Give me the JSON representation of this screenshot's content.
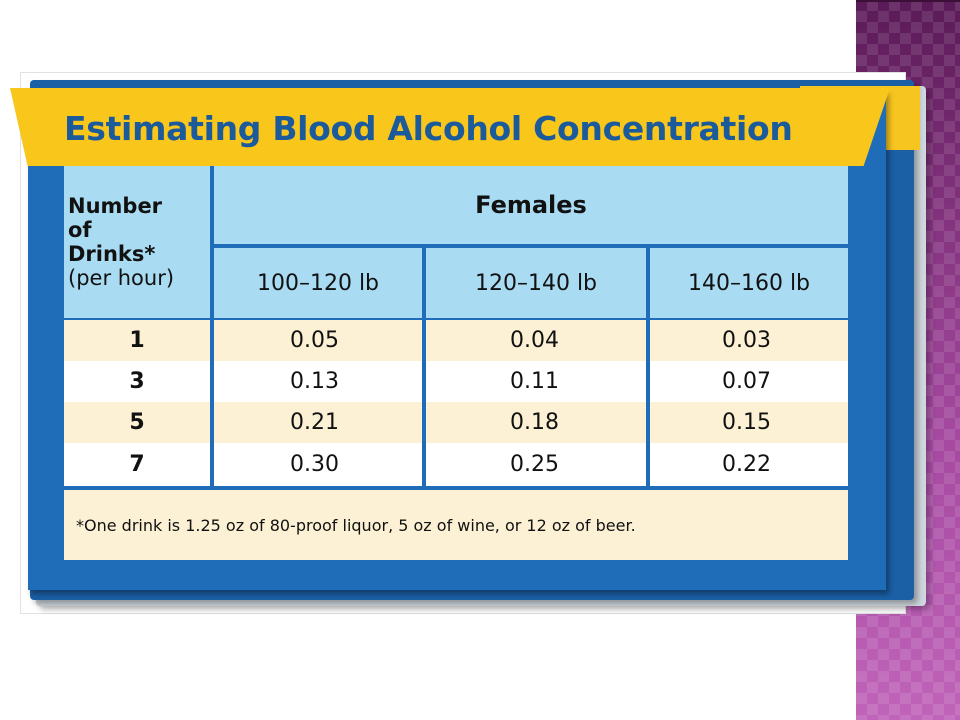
{
  "slide": {
    "title": "Estimating Blood Alcohol Concentration",
    "colors": {
      "banner": "#f9c71c",
      "title": "#1b5a9b",
      "card_border": "#1f6cb8",
      "header_fill": "#a9dcf3",
      "row_shade": "#fcf1d4",
      "side_strip": "#9c3d95"
    }
  },
  "table": {
    "row_header": {
      "line1": "Number",
      "line2": "of",
      "line3": "Drinks*",
      "line4": "(per hour)"
    },
    "group_header": "Females",
    "columns": [
      "100–120 lb",
      "120–140 lb",
      "140–160 lb"
    ],
    "rows": [
      {
        "drinks": "1",
        "values": [
          "0.05",
          "0.04",
          "0.03"
        ]
      },
      {
        "drinks": "3",
        "values": [
          "0.13",
          "0.11",
          "0.07"
        ]
      },
      {
        "drinks": "5",
        "values": [
          "0.21",
          "0.18",
          "0.15"
        ]
      },
      {
        "drinks": "7",
        "values": [
          "0.30",
          "0.25",
          "0.22"
        ]
      }
    ],
    "footnote": "*One drink is 1.25 oz of 80-proof liquor, 5 oz of wine, or 12 oz of beer."
  }
}
